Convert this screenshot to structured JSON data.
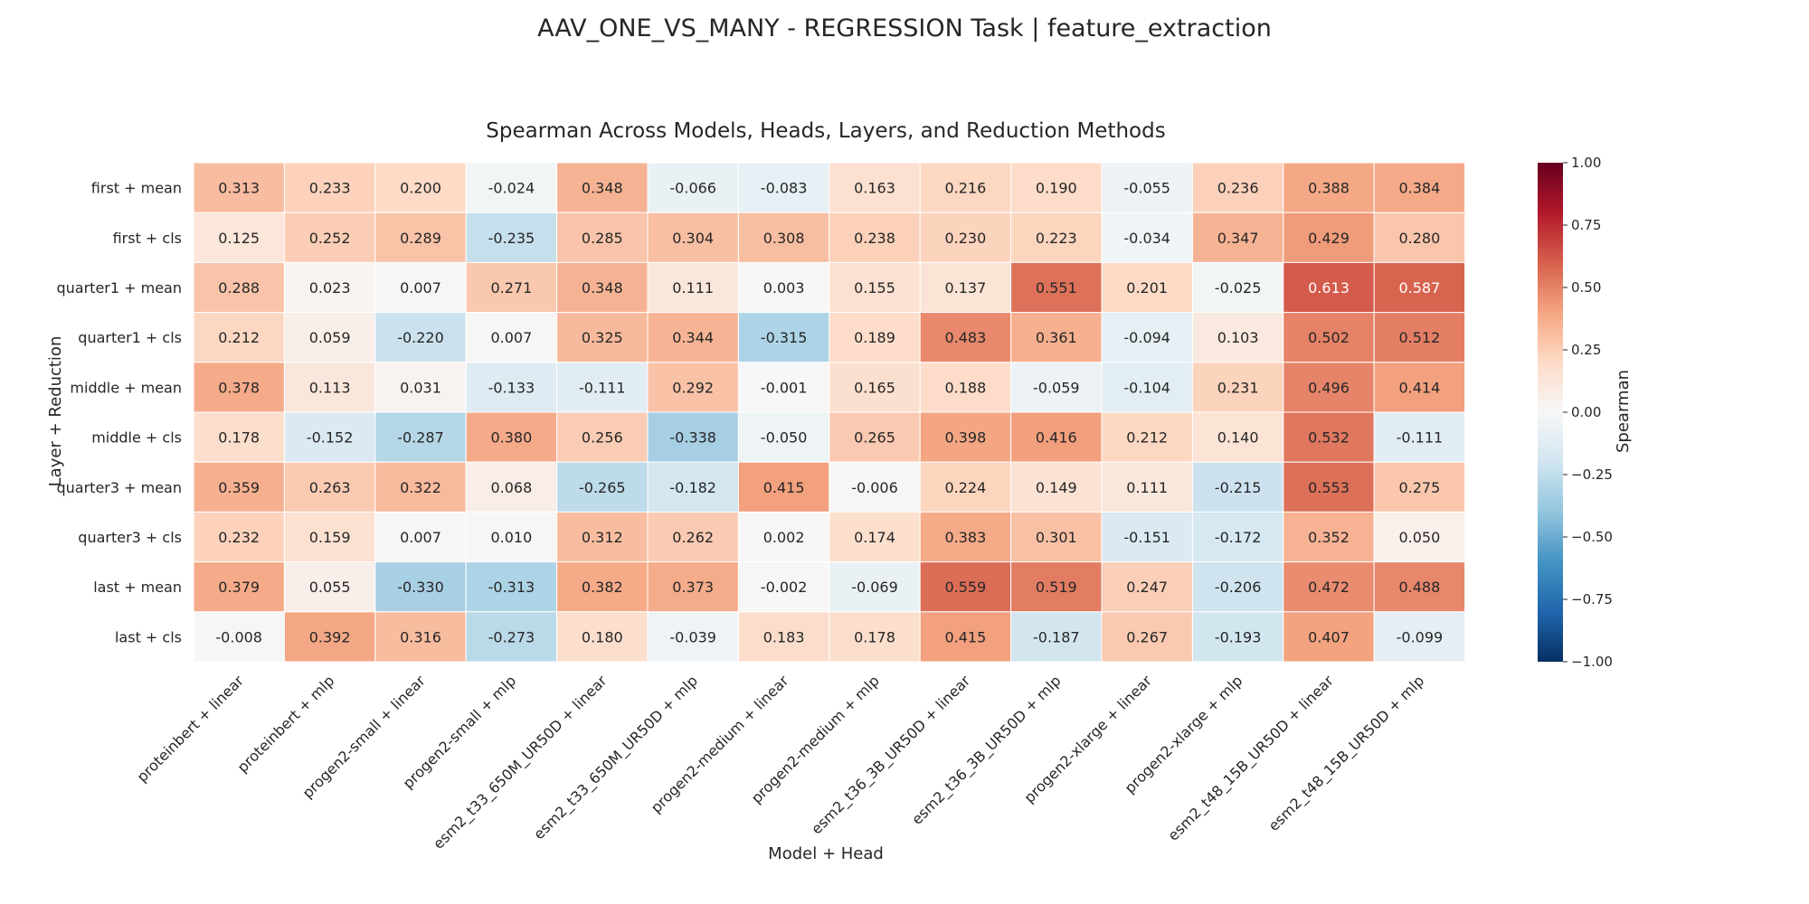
{
  "suptitle": "AAV_ONE_VS_MANY - REGRESSION Task | feature_extraction",
  "chart_data": {
    "type": "heatmap",
    "title": "Spearman Across Models, Heads, Layers, and Reduction Methods",
    "xlabel": "Model + Head",
    "ylabel": "Layer + Reduction",
    "colorbar_label": "Spearman",
    "colormap": "RdBu_r",
    "vmin": -1.0,
    "vmax": 1.0,
    "colorbar_ticks": [
      "1.00",
      "0.75",
      "0.50",
      "0.25",
      "0.00",
      "−0.25",
      "−0.50",
      "−0.75",
      "−1.00"
    ],
    "x_categories": [
      "proteinbert + linear",
      "proteinbert + mlp",
      "progen2-small + linear",
      "progen2-small + mlp",
      "esm2_t33_650M_UR50D + linear",
      "esm2_t33_650M_UR50D + mlp",
      "progen2-medium + linear",
      "progen2-medium + mlp",
      "esm2_t36_3B_UR50D + linear",
      "esm2_t36_3B_UR50D + mlp",
      "progen2-xlarge + linear",
      "progen2-xlarge + mlp",
      "esm2_t48_15B_UR50D + linear",
      "esm2_t48_15B_UR50D + mlp"
    ],
    "y_categories": [
      "first + mean",
      "first + cls",
      "quarter1 + mean",
      "quarter1 + cls",
      "middle + mean",
      "middle + cls",
      "quarter3 + mean",
      "quarter3 + cls",
      "last + mean",
      "last + cls"
    ],
    "values": [
      [
        0.313,
        0.233,
        0.2,
        -0.024,
        0.348,
        -0.066,
        -0.083,
        0.163,
        0.216,
        0.19,
        -0.055,
        0.236,
        0.388,
        0.384
      ],
      [
        0.125,
        0.252,
        0.289,
        -0.235,
        0.285,
        0.304,
        0.308,
        0.238,
        0.23,
        0.223,
        -0.034,
        0.347,
        0.429,
        0.28
      ],
      [
        0.288,
        0.023,
        0.007,
        0.271,
        0.348,
        0.111,
        0.003,
        0.155,
        0.137,
        0.551,
        0.201,
        -0.025,
        0.613,
        0.587
      ],
      [
        0.212,
        0.059,
        -0.22,
        0.007,
        0.325,
        0.344,
        -0.315,
        0.189,
        0.483,
        0.361,
        -0.094,
        0.103,
        0.502,
        0.512
      ],
      [
        0.378,
        0.113,
        0.031,
        -0.133,
        -0.111,
        0.292,
        -0.001,
        0.165,
        0.188,
        -0.059,
        -0.104,
        0.231,
        0.496,
        0.414
      ],
      [
        0.178,
        -0.152,
        -0.287,
        0.38,
        0.256,
        -0.338,
        -0.05,
        0.265,
        0.398,
        0.416,
        0.212,
        0.14,
        0.532,
        -0.111
      ],
      [
        0.359,
        0.263,
        0.322,
        0.068,
        -0.265,
        -0.182,
        0.415,
        -0.006,
        0.224,
        0.149,
        0.111,
        -0.215,
        0.553,
        0.275
      ],
      [
        0.232,
        0.159,
        0.007,
        0.01,
        0.312,
        0.262,
        0.002,
        0.174,
        0.383,
        0.301,
        -0.151,
        -0.172,
        0.352,
        0.05
      ],
      [
        0.379,
        0.055,
        -0.33,
        -0.313,
        0.382,
        0.373,
        -0.002,
        -0.069,
        0.559,
        0.519,
        0.247,
        -0.206,
        0.472,
        0.488
      ],
      [
        -0.008,
        0.392,
        0.316,
        -0.273,
        0.18,
        -0.039,
        0.183,
        0.178,
        0.415,
        -0.187,
        0.267,
        -0.193,
        0.407,
        -0.099
      ]
    ]
  }
}
